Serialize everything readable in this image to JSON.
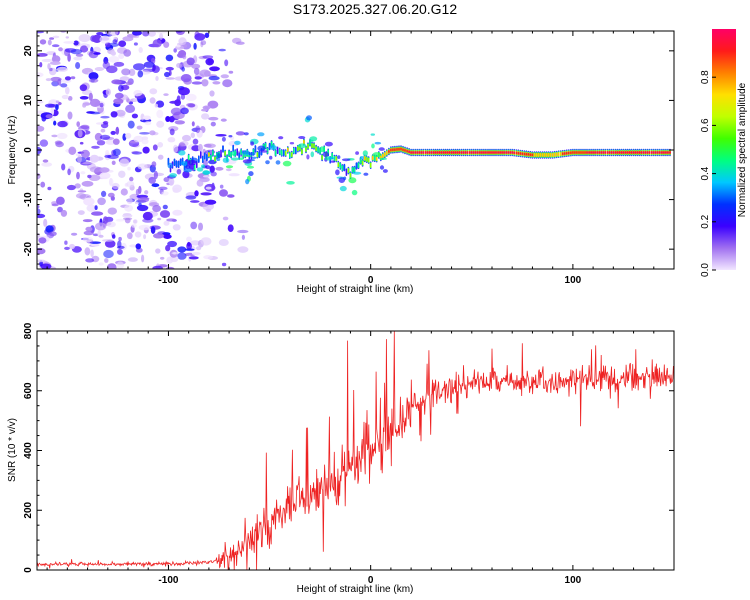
{
  "title": "S173.2025.327.06.20.G12",
  "chart_data": [
    {
      "type": "heatmap",
      "xlabel": "Height of straight line (km)",
      "ylabel": "Frequency (Hz)",
      "xlim": [
        -165,
        150
      ],
      "ylim": [
        -24,
        24
      ],
      "x_ticks": [
        -100,
        0,
        100
      ],
      "y_ticks": [
        -20,
        -10,
        0,
        10,
        20
      ],
      "colorbar": {
        "label": "Normalized spectral amplitude",
        "range": [
          0,
          1
        ],
        "ticks": [
          0.0,
          0.2,
          0.4,
          0.6,
          0.8
        ],
        "stops": [
          "#f2e6ff",
          "#a070f0",
          "#3a00ff",
          "#0030ff",
          "#00c8ff",
          "#00ff80",
          "#40ff00",
          "#c0ff00",
          "#ffe000",
          "#ff8000",
          "#ff1a1a",
          "#ff0066"
        ]
      },
      "ridge": {
        "x": [
          -100,
          -90,
          -80,
          -70,
          -60,
          -50,
          -40,
          -30,
          -20,
          -15,
          -10,
          -5,
          0,
          5,
          10,
          15,
          20,
          30,
          40,
          50,
          60,
          70,
          80,
          90,
          100,
          110,
          120,
          130,
          140,
          148
        ],
        "freq": [
          -3,
          -2.5,
          -1.5,
          -0.5,
          -1,
          0.5,
          -1,
          0.5,
          -1,
          -3,
          -5,
          -2.5,
          -2.5,
          -1.5,
          0,
          0.2,
          -0.5,
          -0.5,
          -0.5,
          -0.5,
          -0.5,
          -0.5,
          -1,
          -1,
          -0.5,
          -0.5,
          -0.5,
          -0.5,
          -0.5,
          -0.5
        ],
        "amplitude": [
          0.3,
          0.4,
          0.5,
          0.4,
          0.45,
          0.5,
          0.55,
          0.6,
          0.5,
          0.55,
          0.4,
          0.6,
          0.75,
          0.75,
          0.9,
          0.9,
          0.95,
          0.98,
          0.98,
          0.98,
          0.98,
          0.95,
          0.85,
          0.8,
          0.9,
          0.95,
          0.95,
          0.98,
          0.98,
          0.95
        ]
      },
      "noise_region_x": [
        -165,
        -72
      ]
    },
    {
      "type": "line",
      "xlabel": "Height of straight line (km)",
      "ylabel": "SNR (10 * v/v)",
      "xlim": [
        -165,
        150
      ],
      "ylim": [
        0,
        800
      ],
      "x_ticks": [
        -100,
        0,
        100
      ],
      "y_ticks": [
        0,
        200,
        400,
        600,
        800
      ],
      "color": "#ee2222",
      "trend": {
        "x": [
          -165,
          -100,
          -80,
          -70,
          -60,
          -50,
          -40,
          -30,
          -20,
          -10,
          0,
          10,
          20,
          30,
          40,
          60,
          80,
          100,
          120,
          150
        ],
        "snr": [
          20,
          20,
          25,
          40,
          90,
          160,
          220,
          260,
          300,
          340,
          390,
          460,
          540,
          590,
          615,
          630,
          630,
          635,
          640,
          645
        ]
      }
    }
  ]
}
